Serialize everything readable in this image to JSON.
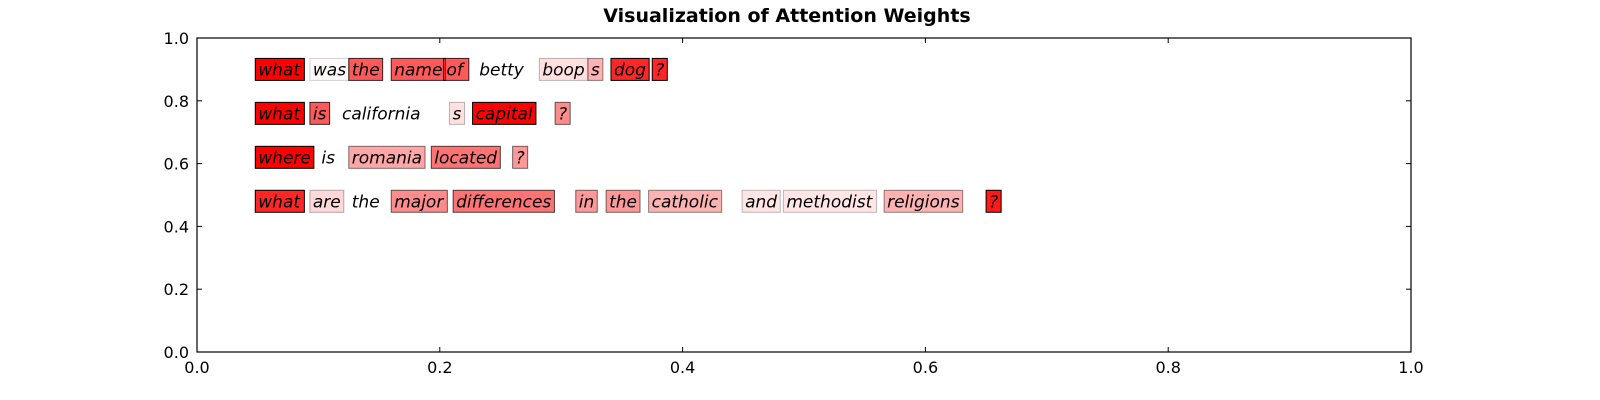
{
  "chart_data": {
    "type": "table",
    "title": "Visualization of Attention Weights",
    "xlim": [
      0.0,
      1.0
    ],
    "ylim": [
      0.0,
      1.0
    ],
    "xticks": [
      0.0,
      0.2,
      0.4,
      0.6,
      0.8,
      1.0
    ],
    "yticks": [
      0.0,
      0.2,
      0.4,
      0.6,
      0.8,
      1.0
    ],
    "xtick_labels": [
      "0.0",
      "0.2",
      "0.4",
      "0.6",
      "0.8",
      "1.0"
    ],
    "ytick_labels": [
      "0.0",
      "0.2",
      "0.4",
      "0.6",
      "0.8",
      "1.0"
    ],
    "grid": false,
    "highlight_color": "#ff0000",
    "sentences": [
      {
        "y": 0.9,
        "tokens": [
          {
            "word": "what",
            "x": 0.048,
            "weight": 1.0
          },
          {
            "word": "was",
            "x": 0.093,
            "weight": 0.02
          },
          {
            "word": "the",
            "x": 0.125,
            "weight": 0.65
          },
          {
            "word": "name",
            "x": 0.16,
            "weight": 0.65
          },
          {
            "word": "of",
            "x": 0.203,
            "weight": 0.65
          },
          {
            "word": "betty",
            "x": 0.23,
            "weight": 0.0
          },
          {
            "word": "boop",
            "x": 0.282,
            "weight": 0.12
          },
          {
            "word": "s",
            "x": 0.322,
            "weight": 0.3
          },
          {
            "word": "dog",
            "x": 0.341,
            "weight": 0.85
          },
          {
            "word": "?",
            "x": 0.375,
            "weight": 0.85
          }
        ]
      },
      {
        "y": 0.76,
        "tokens": [
          {
            "word": "what",
            "x": 0.048,
            "weight": 1.0
          },
          {
            "word": "is",
            "x": 0.093,
            "weight": 0.65
          },
          {
            "word": "california",
            "x": 0.117,
            "weight": 0.0
          },
          {
            "word": "s",
            "x": 0.208,
            "weight": 0.12
          },
          {
            "word": "capital",
            "x": 0.227,
            "weight": 1.0
          },
          {
            "word": "?",
            "x": 0.295,
            "weight": 0.45
          }
        ]
      },
      {
        "y": 0.62,
        "tokens": [
          {
            "word": "where",
            "x": 0.048,
            "weight": 1.0
          },
          {
            "word": "is",
            "x": 0.1,
            "weight": 0.0
          },
          {
            "word": "romania",
            "x": 0.125,
            "weight": 0.35
          },
          {
            "word": "located",
            "x": 0.193,
            "weight": 0.55
          },
          {
            "word": "?",
            "x": 0.26,
            "weight": 0.4
          }
        ]
      },
      {
        "y": 0.48,
        "tokens": [
          {
            "word": "what",
            "x": 0.048,
            "weight": 0.85
          },
          {
            "word": "are",
            "x": 0.093,
            "weight": 0.15
          },
          {
            "word": "the",
            "x": 0.125,
            "weight": 0.0
          },
          {
            "word": "major",
            "x": 0.16,
            "weight": 0.45
          },
          {
            "word": "differences",
            "x": 0.211,
            "weight": 0.55
          },
          {
            "word": "in",
            "x": 0.312,
            "weight": 0.4
          },
          {
            "word": "the",
            "x": 0.337,
            "weight": 0.4
          },
          {
            "word": "catholic",
            "x": 0.372,
            "weight": 0.3
          },
          {
            "word": "and",
            "x": 0.449,
            "weight": 0.1
          },
          {
            "word": "methodist",
            "x": 0.483,
            "weight": 0.1
          },
          {
            "word": "religions",
            "x": 0.566,
            "weight": 0.3
          },
          {
            "word": "?",
            "x": 0.65,
            "weight": 0.9
          }
        ]
      }
    ]
  }
}
